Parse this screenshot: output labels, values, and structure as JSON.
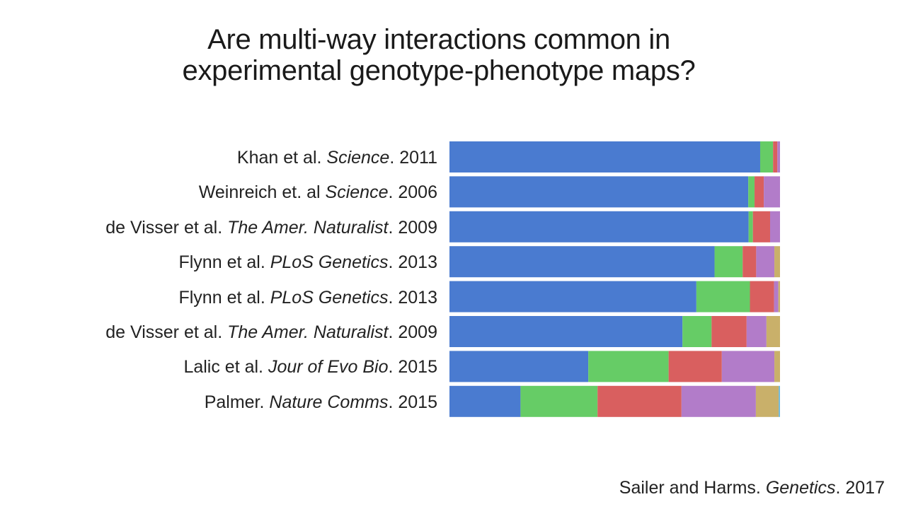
{
  "title_lines": [
    "Are multi-way interactions common in",
    "experimental genotype-phenotype maps?"
  ],
  "citation": {
    "author": "Sailer and Harms.",
    "journal": "Genetics",
    "year": ". 2017"
  },
  "colors": [
    "#4a7bd0",
    "#66cc66",
    "#d95f5f",
    "#b27cc9",
    "#c9b06a",
    "#6cb8d9"
  ],
  "chart_data": {
    "type": "bar",
    "orientation": "horizontal",
    "stacked": true,
    "normalized": true,
    "categories": [
      {
        "prefix": "Khan et al. ",
        "journal": "Science",
        "suffix": ". 2011"
      },
      {
        "prefix": "Weinreich et. al ",
        "journal": "Science",
        "suffix": ". 2006"
      },
      {
        "prefix": "de Visser et al. ",
        "journal": "The Amer. Naturalist",
        "suffix": ". 2009"
      },
      {
        "prefix": "Flynn et al. ",
        "journal": "PLoS Genetics",
        "suffix": ". 2013"
      },
      {
        "prefix": "Flynn et al. ",
        "journal": "PLoS Genetics",
        "suffix": ". 2013"
      },
      {
        "prefix": "de Visser et al. ",
        "journal": "The Amer. Naturalist",
        "suffix": ". 2009"
      },
      {
        "prefix": "Lalic et al. ",
        "journal": "Jour of Evo Bio",
        "suffix": ". 2015"
      },
      {
        "prefix": "Palmer. ",
        "journal": "Nature Comms",
        "suffix": ". 2015"
      }
    ],
    "series": [
      {
        "values": [
          0.94,
          0.904,
          0.905,
          0.802,
          0.747,
          0.705,
          0.42,
          0.215
        ]
      },
      {
        "values": [
          0.039,
          0.019,
          0.013,
          0.085,
          0.162,
          0.088,
          0.243,
          0.233
        ]
      },
      {
        "values": [
          0.013,
          0.028,
          0.052,
          0.041,
          0.073,
          0.106,
          0.161,
          0.254
        ]
      },
      {
        "values": [
          0.008,
          0.049,
          0.03,
          0.055,
          0.013,
          0.06,
          0.159,
          0.225
        ]
      },
      {
        "values": [
          0.0,
          0.0,
          0.0,
          0.017,
          0.005,
          0.041,
          0.017,
          0.069
        ]
      },
      {
        "values": [
          0.0,
          0.0,
          0.0,
          0.0,
          0.0,
          0.0,
          0.0,
          0.004
        ]
      }
    ],
    "xlim": [
      0,
      1
    ],
    "grid": false,
    "legend": "none"
  }
}
